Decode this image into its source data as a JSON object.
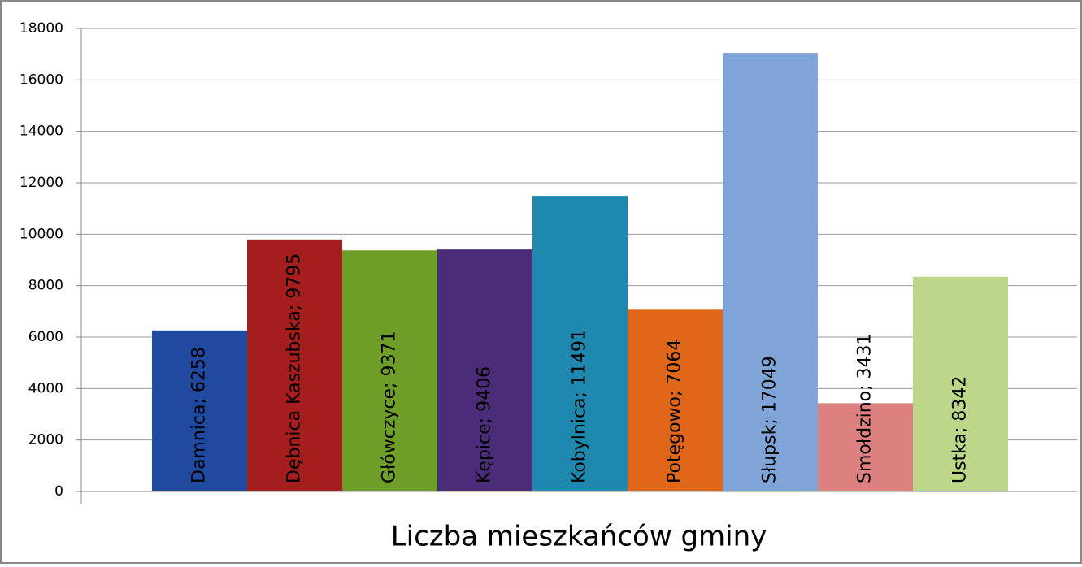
{
  "chart_data": {
    "type": "bar",
    "x_axis_title": "Liczba mieszkańców gminy",
    "values": [
      6258,
      9795,
      9371,
      9406,
      11491,
      7064,
      17049,
      3431,
      8342
    ],
    "value_labels": [
      "Damnica; 6258",
      "Dębnica Kaszubska; 9795",
      "Główczyce; 9371",
      "Kępice; 9406",
      "Kobylnica; 11491",
      "Potęgowo; 7064",
      "Słupsk; 17049",
      "Smołdzino; 3431",
      "Ustka; 8342"
    ],
    "colors": [
      "#1f4aa0",
      "#a51e1e",
      "#6e9e28",
      "#4b2c78",
      "#1f88ae",
      "#e0661a",
      "#7fa5d8",
      "#dc8080",
      "#bcd68a"
    ],
    "ylim": [
      0,
      18000
    ],
    "yticks": [
      0,
      2000,
      4000,
      6000,
      8000,
      10000,
      12000,
      14000,
      16000,
      18000
    ],
    "grid": true
  }
}
